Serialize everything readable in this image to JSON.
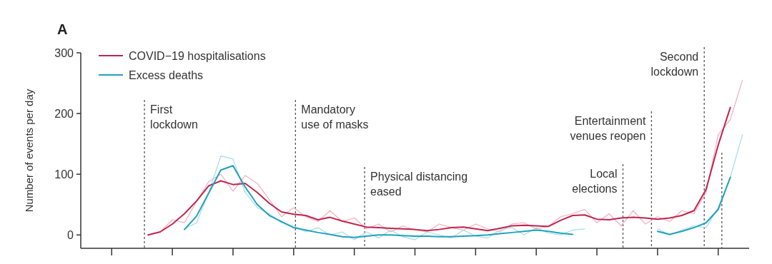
{
  "chart_data": {
    "type": "line",
    "ylabel": "Number of events per day",
    "annotations": [
      "A",
      "First\nlockdown",
      "Mandatory\nuse of masks",
      "Physical distancing\neased",
      "Local\nelections",
      "Entertainment\nvenues reopen",
      "Second\nlockdown"
    ],
    "categories": [
      null,
      null,
      null,
      null,
      null,
      null,
      null,
      null,
      null,
      null,
      null,
      null,
      null,
      null,
      null,
      null,
      null,
      null,
      null,
      null,
      null,
      null,
      null,
      null,
      null,
      null,
      null,
      null,
      null,
      null,
      null,
      null,
      null,
      null,
      null,
      null,
      null,
      null,
      null,
      null,
      null,
      null,
      null,
      null,
      null,
      null,
      null,
      null,
      null,
      null,
      null,
      null,
      null,
      null,
      null
    ],
    "ylim": [
      -22,
      300
    ],
    "yticks": [
      0,
      100,
      200,
      300
    ],
    "tick_labels": "y",
    "legend": "top left",
    "line_style": "solid",
    "series": [
      {
        "color": "#f2aebb",
        "values": [
          null,
          null,
          null,
          null,
          null,
          0,
          5,
          25,
          20,
          55,
          88,
          100,
          72,
          98,
          85,
          58,
          30,
          45,
          30,
          22,
          40,
          22,
          28,
          10,
          18,
          5,
          15,
          8,
          5,
          18,
          12,
          8,
          18,
          10,
          5,
          18,
          20,
          10,
          14,
          30,
          35,
          42,
          20,
          35,
          15,
          40,
          18,
          30,
          22,
          40,
          35,
          70,
          165,
          190,
          255
        ]
      },
      {
        "color": "#a3dbe9",
        "values": [
          null,
          null,
          null,
          null,
          null,
          null,
          null,
          null,
          10,
          20,
          70,
          130,
          125,
          70,
          45,
          35,
          20,
          15,
          5,
          12,
          0,
          5,
          -8,
          5,
          -5,
          8,
          -3,
          -8,
          5,
          0,
          -5,
          8,
          -2,
          -5,
          8,
          12,
          0,
          12,
          3,
          0,
          8,
          10,
          null,
          null,
          null,
          null,
          null,
          10,
          0,
          8,
          15,
          12,
          45,
          95,
          165
        ]
      },
      {
        "name": "COVID−19 hospitalisations",
        "color": "#c0254f",
        "values": [
          null,
          null,
          null,
          null,
          null,
          0,
          5,
          18,
          35,
          56,
          81,
          89,
          83,
          85,
          70,
          52,
          38,
          34,
          32,
          25,
          29,
          23,
          18,
          13,
          12,
          11,
          10,
          9,
          7,
          9,
          12,
          13,
          10,
          7,
          11,
          15,
          16,
          15,
          14,
          24,
          32,
          33,
          26,
          25,
          28,
          29,
          28,
          26,
          28,
          32,
          40,
          75,
          148,
          210,
          null
        ]
      },
      {
        "name": "Excess deaths",
        "color": "#1fa2bd",
        "values": [
          null,
          null,
          null,
          null,
          null,
          null,
          null,
          null,
          9,
          31,
          69,
          107,
          114,
          79,
          50,
          32,
          22,
          12,
          8,
          4,
          1,
          -3,
          -4,
          -2,
          0,
          0,
          -1,
          -2,
          -2,
          -3,
          -3,
          -2,
          -1,
          0,
          2,
          4,
          6,
          8,
          6,
          3,
          1,
          null,
          null,
          null,
          null,
          null,
          null,
          6,
          1,
          6,
          12,
          20,
          42,
          95,
          null
        ]
      }
    ]
  }
}
